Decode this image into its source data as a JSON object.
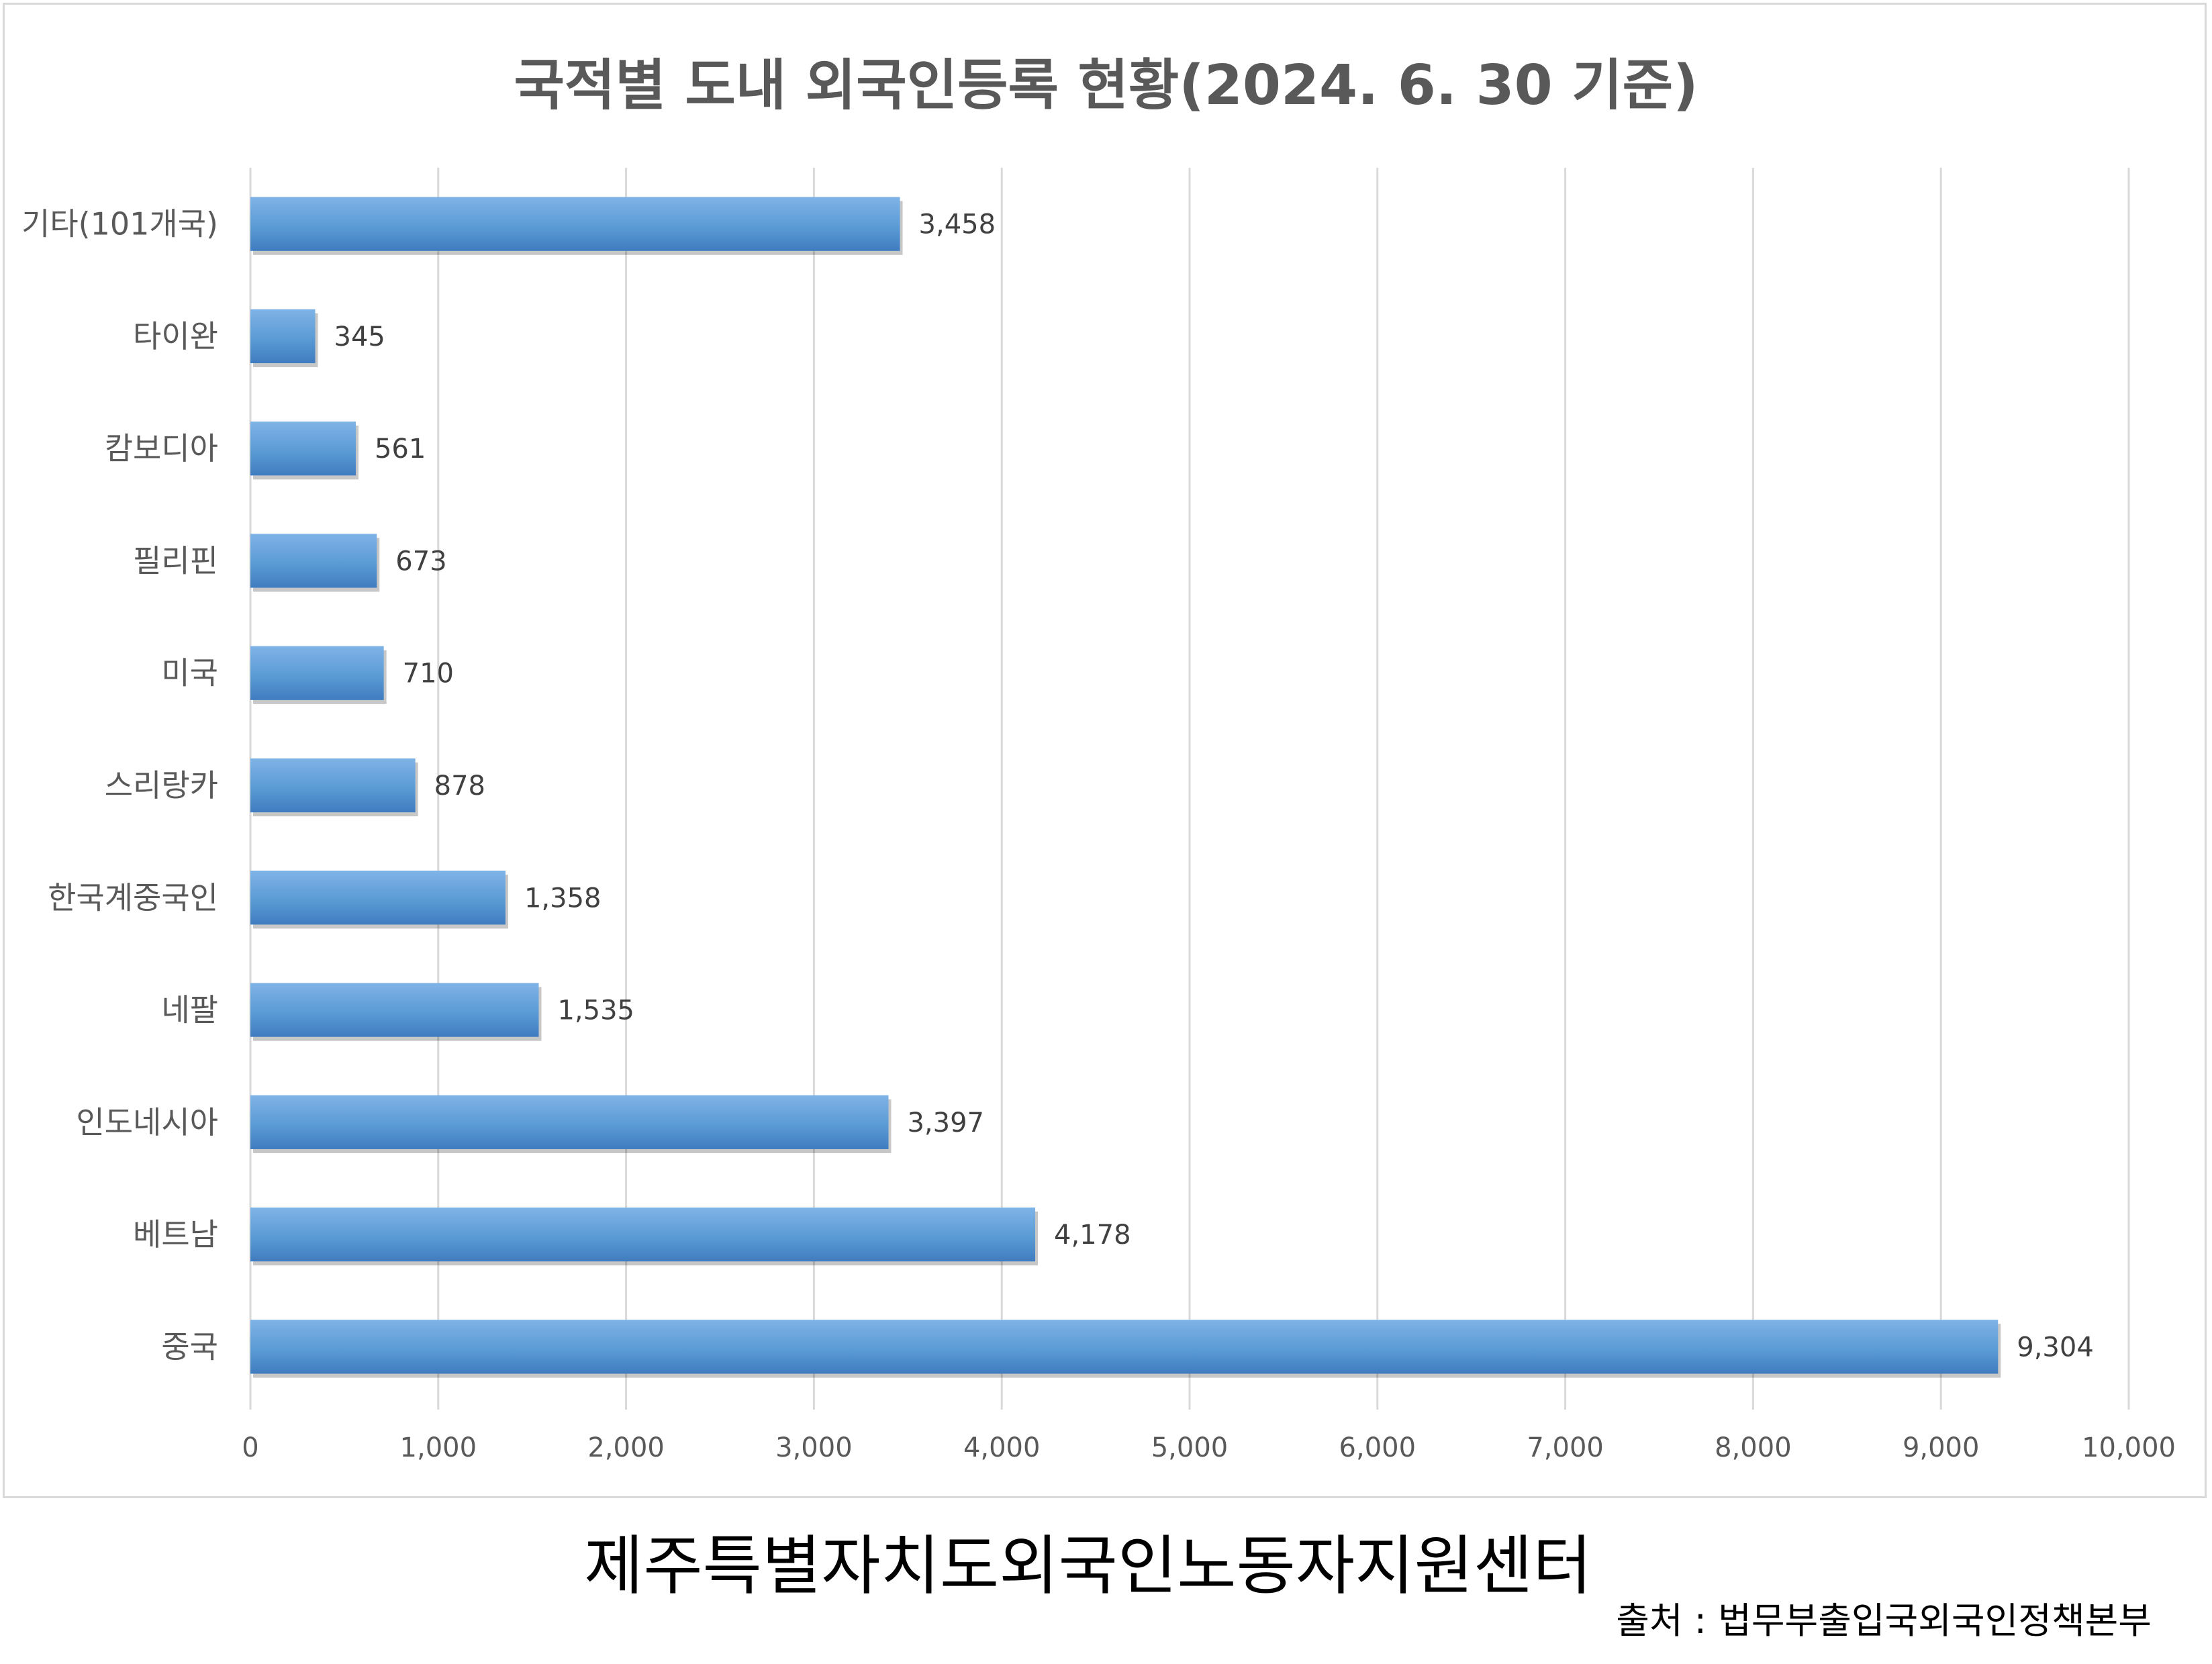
{
  "title": "국적별 도내 외국인등록 현황(2024. 6. 30 기준)",
  "footer": {
    "organization": "제주특별자치도외국인노동자지원센터",
    "source": "출처 : 법무부출입국외국인정책본부"
  },
  "chart_data": {
    "type": "bar",
    "orientation": "horizontal",
    "categories": [
      "중국",
      "베트남",
      "인도네시아",
      "네팔",
      "한국계중국인",
      "스리랑카",
      "미국",
      "필리핀",
      "캄보디아",
      "타이완",
      "기타(101개국)"
    ],
    "values": [
      9304,
      4178,
      3397,
      1535,
      1358,
      878,
      710,
      673,
      561,
      345,
      3458
    ],
    "value_labels": [
      "9,304",
      "4,178",
      "3,397",
      "1,535",
      "1,358",
      "878",
      "710",
      "673",
      "561",
      "345",
      "3,458"
    ],
    "xlim": [
      0,
      10000
    ],
    "x_ticks": [
      0,
      1000,
      2000,
      3000,
      4000,
      5000,
      6000,
      7000,
      8000,
      9000,
      10000
    ],
    "x_tick_labels": [
      "0",
      "1,000",
      "2,000",
      "3,000",
      "4,000",
      "5,000",
      "6,000",
      "7,000",
      "8,000",
      "9,000",
      "10,000"
    ],
    "grid": "vertical",
    "legend": "none",
    "bar_color": "#5b9bd5",
    "bar_color_light": "#7fb3e6",
    "bar_color_dark": "#3f7cc0",
    "grid_color": "#d9d9d9"
  }
}
